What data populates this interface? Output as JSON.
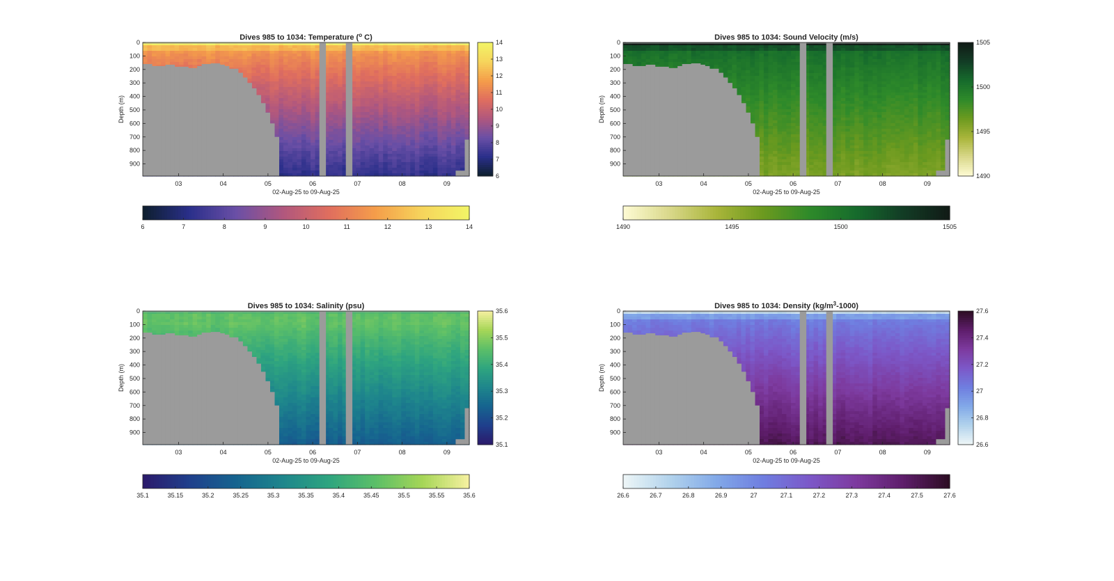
{
  "figure": {
    "background": "#ffffff",
    "land_color": "#9b9b9b",
    "axes_color": "#262626"
  },
  "chart_data": [
    {
      "type": "heatmap",
      "id": "temperature",
      "title": "Dives 985 to 1034: Temperature (",
      "title_sup": "o",
      "title_end": " C)",
      "xlabel": "02-Aug-25 to 09-Aug-25",
      "ylabel": "Depth (m)",
      "x_ticks": [
        "03",
        "04",
        "05",
        "06",
        "07",
        "08",
        "09"
      ],
      "y_ticks": [
        "0",
        "100",
        "200",
        "300",
        "400",
        "500",
        "600",
        "700",
        "800",
        "900"
      ],
      "xlim_days": [
        2.2,
        9.5
      ],
      "ylim": [
        0,
        990
      ],
      "y_reversed": true,
      "colorbar_right_ticks": [
        "6",
        "7",
        "8",
        "9",
        "10",
        "11",
        "12",
        "13",
        "14"
      ],
      "colorbar_bottom_ticks": [
        "6",
        "7",
        "8",
        "9",
        "10",
        "11",
        "12",
        "13",
        "14"
      ],
      "clim": [
        6,
        14
      ],
      "colormap": [
        "#0d1f2d",
        "#2a2f8a",
        "#6a4fa6",
        "#b0577e",
        "#e06e5e",
        "#f59e4a",
        "#f6d55c",
        "#f2f566"
      ],
      "surface_value": 13.7,
      "mixed_layer_value": 11.6,
      "mixed_layer_depth": 60,
      "deep_value": 7.2
    },
    {
      "type": "heatmap",
      "id": "sound_velocity",
      "title": "Dives 985 to 1034: Sound Velocity (m/s)",
      "title_sup": "",
      "title_end": "",
      "xlabel": "02-Aug-25 to 09-Aug-25",
      "ylabel": "Depth (m)",
      "x_ticks": [
        "03",
        "04",
        "05",
        "06",
        "07",
        "08",
        "09"
      ],
      "y_ticks": [
        "0",
        "100",
        "200",
        "300",
        "400",
        "500",
        "600",
        "700",
        "800",
        "900"
      ],
      "xlim_days": [
        2.2,
        9.5
      ],
      "ylim": [
        0,
        990
      ],
      "y_reversed": true,
      "colorbar_right_ticks": [
        "1490",
        "1495",
        "1500",
        "1505"
      ],
      "colorbar_bottom_ticks": [
        "1490",
        "1495",
        "1500",
        "1505"
      ],
      "clim": [
        1490,
        1505
      ],
      "colormap": [
        "#fefbd4",
        "#d9d88a",
        "#a9b53a",
        "#6c9a1f",
        "#2e8a2a",
        "#166b2c",
        "#123c25",
        "#111a16"
      ],
      "surface_value": 1504.8,
      "mixed_layer_value": 1500.5,
      "mixed_layer_depth": 60,
      "deep_value": 1495.8
    },
    {
      "type": "heatmap",
      "id": "salinity",
      "title": "Dives 985 to 1034: Salinity (psu)",
      "title_sup": "",
      "title_end": "",
      "xlabel": "02-Aug-25 to 09-Aug-25",
      "ylabel": "Depth (m)",
      "x_ticks": [
        "03",
        "04",
        "05",
        "06",
        "07",
        "08",
        "09"
      ],
      "y_ticks": [
        "0",
        "100",
        "200",
        "300",
        "400",
        "500",
        "600",
        "700",
        "800",
        "900"
      ],
      "xlim_days": [
        2.2,
        9.5
      ],
      "ylim": [
        0,
        990
      ],
      "y_reversed": true,
      "colorbar_right_ticks": [
        "35.1",
        "35.2",
        "35.3",
        "35.4",
        "35.5",
        "35.6"
      ],
      "colorbar_bottom_ticks": [
        "35.1",
        "35.15",
        "35.2",
        "35.25",
        "35.3",
        "35.35",
        "35.4",
        "35.45",
        "35.5",
        "35.55",
        "35.6"
      ],
      "clim": [
        35.1,
        35.6
      ],
      "colormap": [
        "#2b1a6b",
        "#1f3f8c",
        "#16648f",
        "#1e868c",
        "#2fa57f",
        "#5cbf68",
        "#a6d657",
        "#f7f1a1"
      ],
      "surface_value": 35.44,
      "mixed_layer_value": 35.47,
      "mixed_layer_depth": 80,
      "deep_value": 35.23
    },
    {
      "type": "heatmap",
      "id": "density",
      "title": "Dives 985 to 1034: Density (kg/m",
      "title_sup": "3",
      "title_end": "-1000)",
      "xlabel": "02-Aug-25 to 09-Aug-25",
      "ylabel": "Depth (m)",
      "x_ticks": [
        "03",
        "04",
        "05",
        "06",
        "07",
        "08",
        "09"
      ],
      "y_ticks": [
        "0",
        "100",
        "200",
        "300",
        "400",
        "500",
        "600",
        "700",
        "800",
        "900"
      ],
      "xlim_days": [
        2.2,
        9.5
      ],
      "ylim": [
        0,
        990
      ],
      "y_reversed": true,
      "colorbar_right_ticks": [
        "26.6",
        "26.8",
        "27",
        "27.2",
        "27.4",
        "27.6"
      ],
      "colorbar_bottom_ticks": [
        "26.6",
        "26.7",
        "26.8",
        "26.9",
        "27",
        "27.1",
        "27.2",
        "27.3",
        "27.4",
        "27.5",
        "27.6"
      ],
      "clim": [
        26.6,
        27.6
      ],
      "colormap": [
        "#eef6f7",
        "#b2d3ec",
        "#82a9e8",
        "#6f7ee0",
        "#7c58c8",
        "#7d3a9e",
        "#5e1d6b",
        "#2c0d22"
      ],
      "surface_value": 26.7,
      "mixed_layer_value": 27.02,
      "mixed_layer_depth": 55,
      "deep_value": 27.5
    }
  ]
}
